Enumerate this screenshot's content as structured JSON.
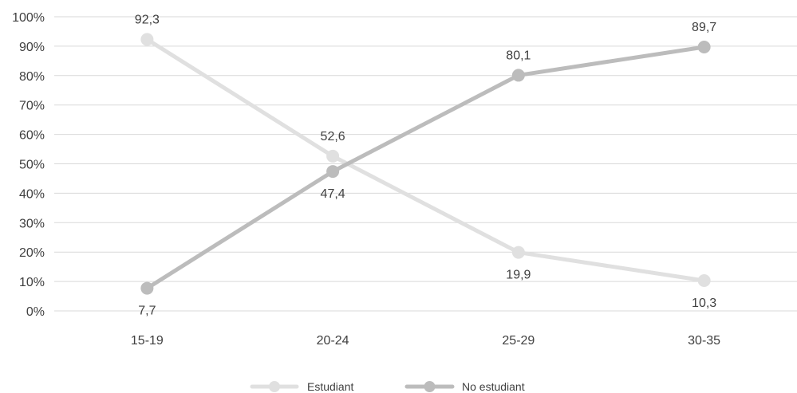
{
  "chart_data": {
    "type": "line",
    "categories": [
      "15-19",
      "20-24",
      "25-29",
      "30-35"
    ],
    "series": [
      {
        "name": "Estudiant",
        "values": [
          92.3,
          52.6,
          19.9,
          10.3
        ],
        "labels": [
          "92,3",
          "52,6",
          "19,9",
          "10,3"
        ],
        "color": "#e0e0e0"
      },
      {
        "name": "No estudiant",
        "values": [
          7.7,
          47.4,
          80.1,
          89.7
        ],
        "labels": [
          "7,7",
          "47,4",
          "80,1",
          "89,7"
        ],
        "color": "#bcbcbc"
      }
    ],
    "yticks": [
      "0%",
      "10%",
      "20%",
      "30%",
      "40%",
      "50%",
      "60%",
      "70%",
      "80%",
      "90%",
      "100%"
    ],
    "ylim": [
      0,
      100
    ],
    "grid": true,
    "gridColor": "#d9d9d9",
    "legend_position": "bottom"
  }
}
